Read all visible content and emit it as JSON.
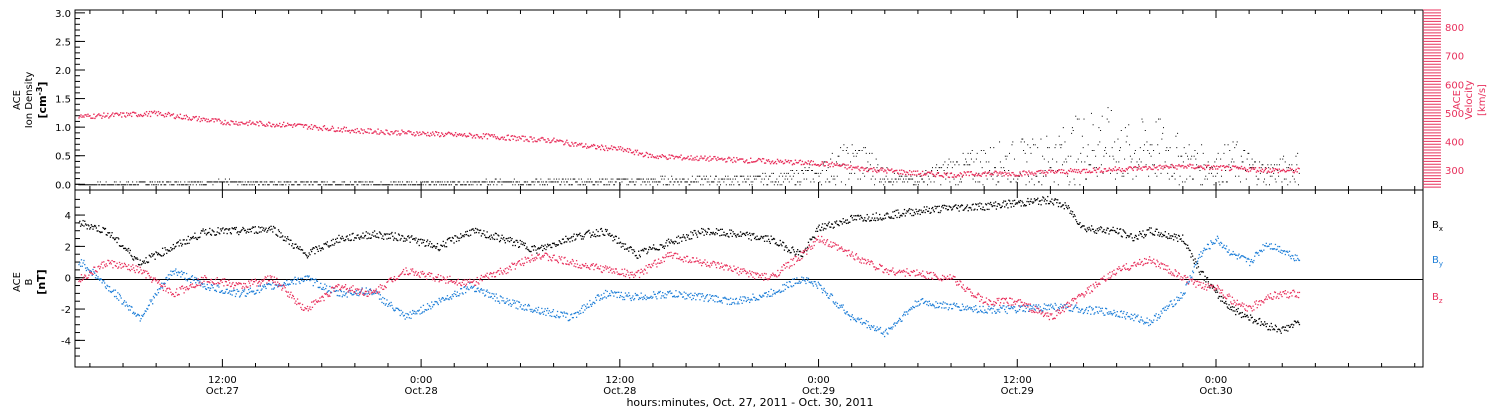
{
  "colors": {
    "black": "#000000",
    "pink": "#e8305c",
    "blue": "#1f7fd8",
    "axis": "#000000"
  },
  "xaxis": {
    "title": "hours:minutes, Oct. 27, 2011 - Oct. 30, 2011",
    "ticks": [
      {
        "h": 12,
        "time": "12:00",
        "date": "Oct.27"
      },
      {
        "h": 24,
        "time": "0:00",
        "date": "Oct.28"
      },
      {
        "h": 36,
        "time": "12:00",
        "date": "Oct.28"
      },
      {
        "h": 48,
        "time": "0:00",
        "date": "Oct.29"
      },
      {
        "h": 60,
        "time": "12:00",
        "date": "Oct.29"
      },
      {
        "h": 72,
        "time": "0:00",
        "date": "Oct.30"
      }
    ],
    "range_hours": [
      3.1,
      84.5
    ]
  },
  "chart_data": [
    {
      "type": "scatter",
      "panel": "top",
      "left_label": [
        "ACE",
        "Ion Density",
        "[cm-3]"
      ],
      "right_label": [
        "ACE",
        "Velocity",
        "[km/s]"
      ],
      "left_axis": {
        "ylim": [
          -0.1,
          3.05
        ],
        "ticks": [
          "0.0",
          "0.5",
          "1.0",
          "1.5",
          "2.0",
          "2.5",
          "3.0"
        ]
      },
      "right_axis": {
        "ylim": [
          230,
          860
        ],
        "ticks": [
          "300",
          "400",
          "500",
          "600",
          "700",
          "800"
        ]
      },
      "series": [
        {
          "name": "Ion Density",
          "axis": "left",
          "color": "#000000",
          "x": [
            3.5,
            8,
            12,
            16,
            20,
            24,
            28,
            32,
            36,
            40,
            44,
            46,
            47,
            48,
            49,
            50,
            51,
            52,
            53,
            54,
            56,
            58,
            60,
            62,
            64,
            65,
            66,
            67,
            68,
            69,
            70,
            71,
            72,
            73,
            74,
            75,
            76,
            77
          ],
          "y": [
            0.02,
            0.05,
            0.08,
            0.06,
            0.04,
            0.05,
            0.08,
            0.1,
            0.12,
            0.15,
            0.18,
            0.22,
            0.3,
            0.4,
            0.6,
            0.8,
            0.7,
            0.3,
            0.15,
            0.2,
            0.5,
            0.7,
            0.8,
            0.9,
            1.3,
            1.5,
            1.2,
            1.0,
            1.3,
            1.1,
            0.8,
            0.7,
            0.6,
            0.8,
            0.6,
            0.4,
            0.5,
            0.6
          ]
        },
        {
          "name": "Velocity",
          "axis": "right",
          "color": "#e8305c",
          "x": [
            3.5,
            6,
            8,
            10,
            12,
            16,
            20,
            24,
            28,
            32,
            34,
            36,
            38,
            40,
            42,
            44,
            46,
            48,
            49,
            50,
            52,
            54,
            56,
            58,
            60,
            62,
            64,
            66,
            68,
            70,
            72,
            74,
            76,
            77
          ],
          "y": [
            490,
            495,
            500,
            485,
            470,
            460,
            440,
            430,
            420,
            405,
            385,
            375,
            350,
            345,
            340,
            335,
            330,
            325,
            320,
            310,
            300,
            290,
            285,
            290,
            290,
            295,
            300,
            305,
            310,
            315,
            310,
            305,
            300,
            300
          ]
        }
      ]
    },
    {
      "type": "scatter",
      "panel": "bottom",
      "left_label": [
        "ACE",
        "B",
        "[nT]"
      ],
      "ylim": [
        -5.7,
        5.6
      ],
      "yticks": [
        "-4",
        "-2",
        "0",
        "2",
        "4"
      ],
      "legend": [
        "Bx",
        "By",
        "Bz"
      ],
      "legend_position": "right",
      "series": [
        {
          "name": "Bx",
          "color": "#000000",
          "x": [
            3.5,
            5,
            7,
            9,
            11,
            13,
            15,
            17,
            19,
            21,
            23,
            25,
            27,
            29,
            31,
            33,
            35,
            37,
            39,
            41,
            43,
            45,
            47,
            48,
            50,
            52,
            54,
            56,
            58,
            60,
            62,
            63,
            64,
            66,
            67,
            68,
            70,
            71,
            72,
            73,
            74,
            75,
            76,
            77
          ],
          "y": [
            3.5,
            3.0,
            1.0,
            2.0,
            3.0,
            3.0,
            3.2,
            1.5,
            2.5,
            2.8,
            2.6,
            2.0,
            3.0,
            2.5,
            1.8,
            2.6,
            3.0,
            1.5,
            2.3,
            3.0,
            2.8,
            2.5,
            1.5,
            3.2,
            3.8,
            4.0,
            4.3,
            4.5,
            4.6,
            4.8,
            5.0,
            4.5,
            3.2,
            3.0,
            2.6,
            3.0,
            2.5,
            0.5,
            -1.0,
            -2.0,
            -2.5,
            -3.0,
            -3.3,
            -2.8
          ]
        },
        {
          "name": "By",
          "color": "#1f7fd8",
          "x": [
            3.5,
            5,
            7,
            9,
            11,
            13,
            15,
            17,
            19,
            21,
            23,
            25,
            27,
            29,
            31,
            33,
            35,
            37,
            39,
            41,
            43,
            45,
            47,
            48,
            50,
            52,
            54,
            56,
            58,
            60,
            62,
            64,
            66,
            68,
            70,
            71,
            72,
            73,
            74,
            75,
            76,
            77
          ],
          "y": [
            1.0,
            -0.5,
            -2.5,
            0.5,
            -0.5,
            -1.0,
            -0.5,
            0.0,
            -1.0,
            -0.8,
            -2.5,
            -1.5,
            -0.5,
            -1.5,
            -2.0,
            -2.5,
            -1.0,
            -1.2,
            -1.0,
            -1.2,
            -1.5,
            -1.0,
            0.0,
            -0.5,
            -2.5,
            -3.5,
            -1.5,
            -1.8,
            -2.0,
            -2.0,
            -1.8,
            -2.0,
            -2.2,
            -2.8,
            -1.0,
            1.5,
            2.5,
            1.5,
            1.0,
            2.2,
            1.8,
            1.2
          ]
        },
        {
          "name": "Bz",
          "color": "#e8305c",
          "x": [
            3.5,
            5,
            7,
            9,
            11,
            13,
            15,
            17,
            19,
            21,
            23,
            25,
            27,
            29,
            31,
            33,
            35,
            37,
            39,
            41,
            43,
            45,
            47,
            48,
            50,
            52,
            54,
            56,
            58,
            60,
            62,
            64,
            66,
            68,
            70,
            71,
            72,
            73,
            74,
            75,
            76,
            77
          ],
          "y": [
            0.0,
            1.0,
            0.5,
            -1.0,
            0.0,
            -0.5,
            0.0,
            -2.0,
            -0.5,
            -1.0,
            0.5,
            0.0,
            -0.3,
            0.5,
            1.5,
            1.0,
            0.6,
            0.2,
            1.5,
            1.0,
            0.5,
            0.0,
            1.5,
            2.5,
            1.5,
            0.5,
            0.3,
            0.0,
            -1.5,
            -1.5,
            -2.5,
            -1.0,
            0.5,
            1.2,
            0.0,
            -0.5,
            -0.5,
            -1.5,
            -2.0,
            -1.2,
            -1.0,
            -1.0
          ]
        }
      ]
    }
  ]
}
